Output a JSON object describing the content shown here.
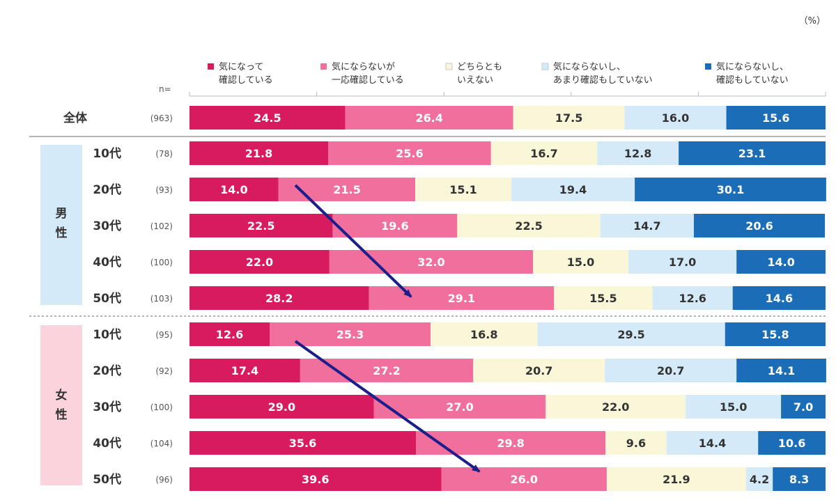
{
  "unit_label": "（%）",
  "n_label": "n=",
  "groups": {
    "total": "全体",
    "male": [
      "男",
      "性"
    ],
    "female": [
      "女",
      "性"
    ]
  },
  "chart_data": {
    "type": "bar",
    "orientation": "horizontal",
    "stacked": "100%",
    "title": "",
    "xlabel": "",
    "ylabel": "",
    "xlim": [
      0,
      100
    ],
    "categories": [
      {
        "group": "全体",
        "age": "",
        "n": "(963)"
      },
      {
        "group": "男性",
        "age": "10代",
        "n": "(78)"
      },
      {
        "group": "男性",
        "age": "20代",
        "n": "(93)"
      },
      {
        "group": "男性",
        "age": "30代",
        "n": "(102)"
      },
      {
        "group": "男性",
        "age": "40代",
        "n": "(100)"
      },
      {
        "group": "男性",
        "age": "50代",
        "n": "(103)"
      },
      {
        "group": "女性",
        "age": "10代",
        "n": "(95)"
      },
      {
        "group": "女性",
        "age": "20代",
        "n": "(92)"
      },
      {
        "group": "女性",
        "age": "30代",
        "n": "(100)"
      },
      {
        "group": "女性",
        "age": "40代",
        "n": "(104)"
      },
      {
        "group": "女性",
        "age": "50代",
        "n": "(96)"
      }
    ],
    "series": [
      {
        "name": [
          "気になって",
          "確認している"
        ],
        "color": "#d81b5e",
        "text_color": "#ffffff",
        "values": [
          24.5,
          21.8,
          14.0,
          22.5,
          22.0,
          28.2,
          12.6,
          17.4,
          29.0,
          35.6,
          39.6
        ]
      },
      {
        "name": [
          "気にならないが",
          "一応確認している"
        ],
        "color": "#f06f9c",
        "text_color": "#ffffff",
        "values": [
          26.4,
          25.6,
          21.5,
          19.6,
          32.0,
          29.1,
          25.3,
          27.2,
          27.0,
          29.8,
          26.0
        ]
      },
      {
        "name": [
          "どちらとも",
          "いえない"
        ],
        "color": "#faf6d8",
        "text_color": "#333333",
        "values": [
          17.5,
          16.7,
          15.1,
          22.5,
          15.0,
          15.5,
          16.8,
          20.7,
          22.0,
          9.6,
          21.9
        ]
      },
      {
        "name": [
          "気にならないし、",
          "あまり確認もしていない"
        ],
        "color": "#d5eaf8",
        "text_color": "#333333",
        "values": [
          16.0,
          12.8,
          19.4,
          14.7,
          17.0,
          12.6,
          29.5,
          20.7,
          15.0,
          14.4,
          4.2
        ]
      },
      {
        "name": [
          "気にならないし、",
          "確認もしていない"
        ],
        "color": "#1a6db6",
        "text_color": "#ffffff",
        "values": [
          15.6,
          23.1,
          30.1,
          20.6,
          14.0,
          14.6,
          15.8,
          14.1,
          7.0,
          10.6,
          8.3
        ]
      }
    ],
    "annotations": [
      {
        "type": "arrow",
        "color": "#1a1f8a",
        "description": "trend arrow across male 20代 to 50代"
      },
      {
        "type": "arrow",
        "color": "#1a1f8a",
        "description": "trend arrow across female 10代 to 50代"
      }
    ],
    "legend_position": "top",
    "grid": false
  }
}
